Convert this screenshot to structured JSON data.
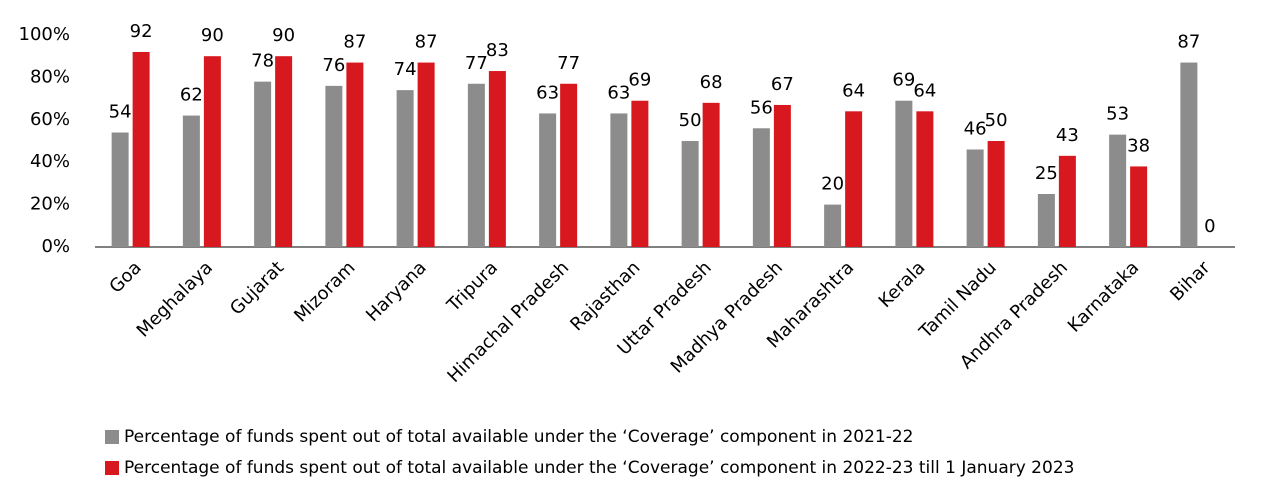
{
  "chart_data": {
    "type": "bar",
    "categories": [
      "Goa",
      "Meghalaya",
      "Gujarat",
      "Mizoram",
      "Haryana",
      "Tripura",
      "Himachal Pradesh",
      "Rajasthan",
      "Uttar Pradesh",
      "Madhya Pradesh",
      "Maharashtra",
      "Kerala",
      "Tamil Nadu",
      "Andhra Pradesh",
      "Karnataka",
      "Bihar"
    ],
    "series": [
      {
        "name": "Percentage of funds spent out of total available under the ‘Coverage’ component in 2021-22",
        "color": "#8c8c8c",
        "values": [
          54,
          62,
          78,
          76,
          74,
          77,
          63,
          63,
          50,
          56,
          20,
          69,
          46,
          25,
          53,
          87
        ]
      },
      {
        "name": "Percentage of funds spent out of total available under the ‘Coverage’ component in 2022-23 till 1 January 2023",
        "color": "#d7191f",
        "values": [
          92,
          90,
          90,
          87,
          87,
          83,
          77,
          69,
          68,
          67,
          64,
          64,
          50,
          43,
          38,
          0
        ]
      }
    ],
    "ylim": [
      0,
      100
    ],
    "yticks": [
      {
        "value": 0,
        "label": "0%"
      },
      {
        "value": 20,
        "label": "20%"
      },
      {
        "value": 40,
        "label": "40%"
      },
      {
        "value": 60,
        "label": "60%"
      },
      {
        "value": 80,
        "label": "80%"
      },
      {
        "value": 100,
        "label": "100%"
      }
    ],
    "grid": false
  }
}
